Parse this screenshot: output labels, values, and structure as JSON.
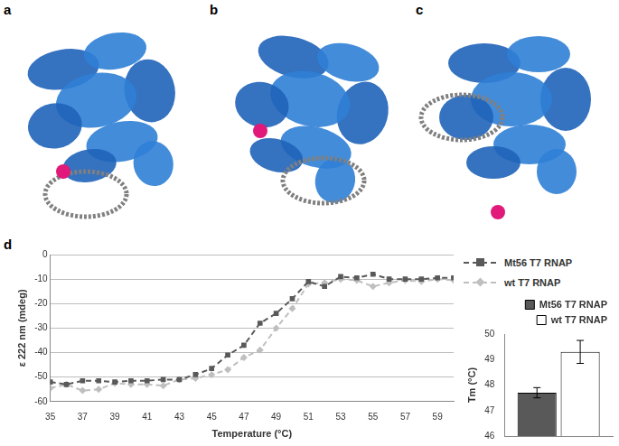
{
  "panels": [
    "a",
    "b",
    "c",
    "d"
  ],
  "chart_data": [
    {
      "type": "line",
      "x_label": "Temperature (°C)",
      "y_label": "ε 222 nm (mdeg)",
      "x": [
        35,
        36,
        37,
        38,
        39,
        40,
        41,
        42,
        43,
        44,
        45,
        46,
        47,
        48,
        49,
        50,
        51,
        52,
        53,
        54,
        55,
        56,
        57,
        58,
        59,
        60
      ],
      "series": [
        {
          "name": "Mt56 T7 RNAP",
          "color": "#595959",
          "marker": "square",
          "line_style": "dashed",
          "values": [
            -52,
            -53,
            -51.5,
            -51.5,
            -52,
            -51.5,
            -51.5,
            -51,
            -51,
            -49,
            -46.5,
            -41,
            -37,
            -28,
            -24,
            -18,
            -11,
            -13,
            -9,
            -9.5,
            -8,
            -10,
            -10,
            -10,
            -9.5,
            -9.5
          ]
        },
        {
          "name": "wt T7 RNAP",
          "color": "#bfbfbf",
          "marker": "diamond",
          "line_style": "dashed",
          "values": [
            -54.5,
            -53,
            -55.5,
            -55,
            -52.5,
            -53,
            -53,
            -53.5,
            -51,
            -50.5,
            -49,
            -47,
            -42,
            -39,
            -30,
            -22,
            -12,
            -11.5,
            -10,
            -10.5,
            -13,
            -11.5,
            -10.5,
            -11,
            -10,
            -10.5
          ]
        }
      ],
      "xlim": [
        35,
        60
      ],
      "xticks": [
        35,
        37,
        39,
        41,
        43,
        45,
        47,
        49,
        51,
        53,
        55,
        57,
        59
      ],
      "ylim": [
        -60,
        0
      ],
      "yticks": [
        -60,
        -50,
        -40,
        -30,
        -20,
        -10,
        0
      ],
      "grid": true,
      "legend": "right"
    },
    {
      "type": "bar",
      "y_label": "Tm (°C)",
      "categories": [
        null
      ],
      "series": [
        {
          "name": "Mt56 T7 RNAP",
          "color": "#595959",
          "values": [
            47.7
          ],
          "errors": [
            0.2
          ]
        },
        {
          "name": "wt T7 RNAP",
          "color": "#ffffff",
          "values": [
            49.3
          ],
          "errors": [
            0.45
          ]
        }
      ],
      "ylim": [
        46,
        50
      ],
      "yticks": [
        46,
        47,
        48,
        49,
        50
      ],
      "grid": false,
      "legend": "top",
      "tick_labels": "y"
    }
  ]
}
